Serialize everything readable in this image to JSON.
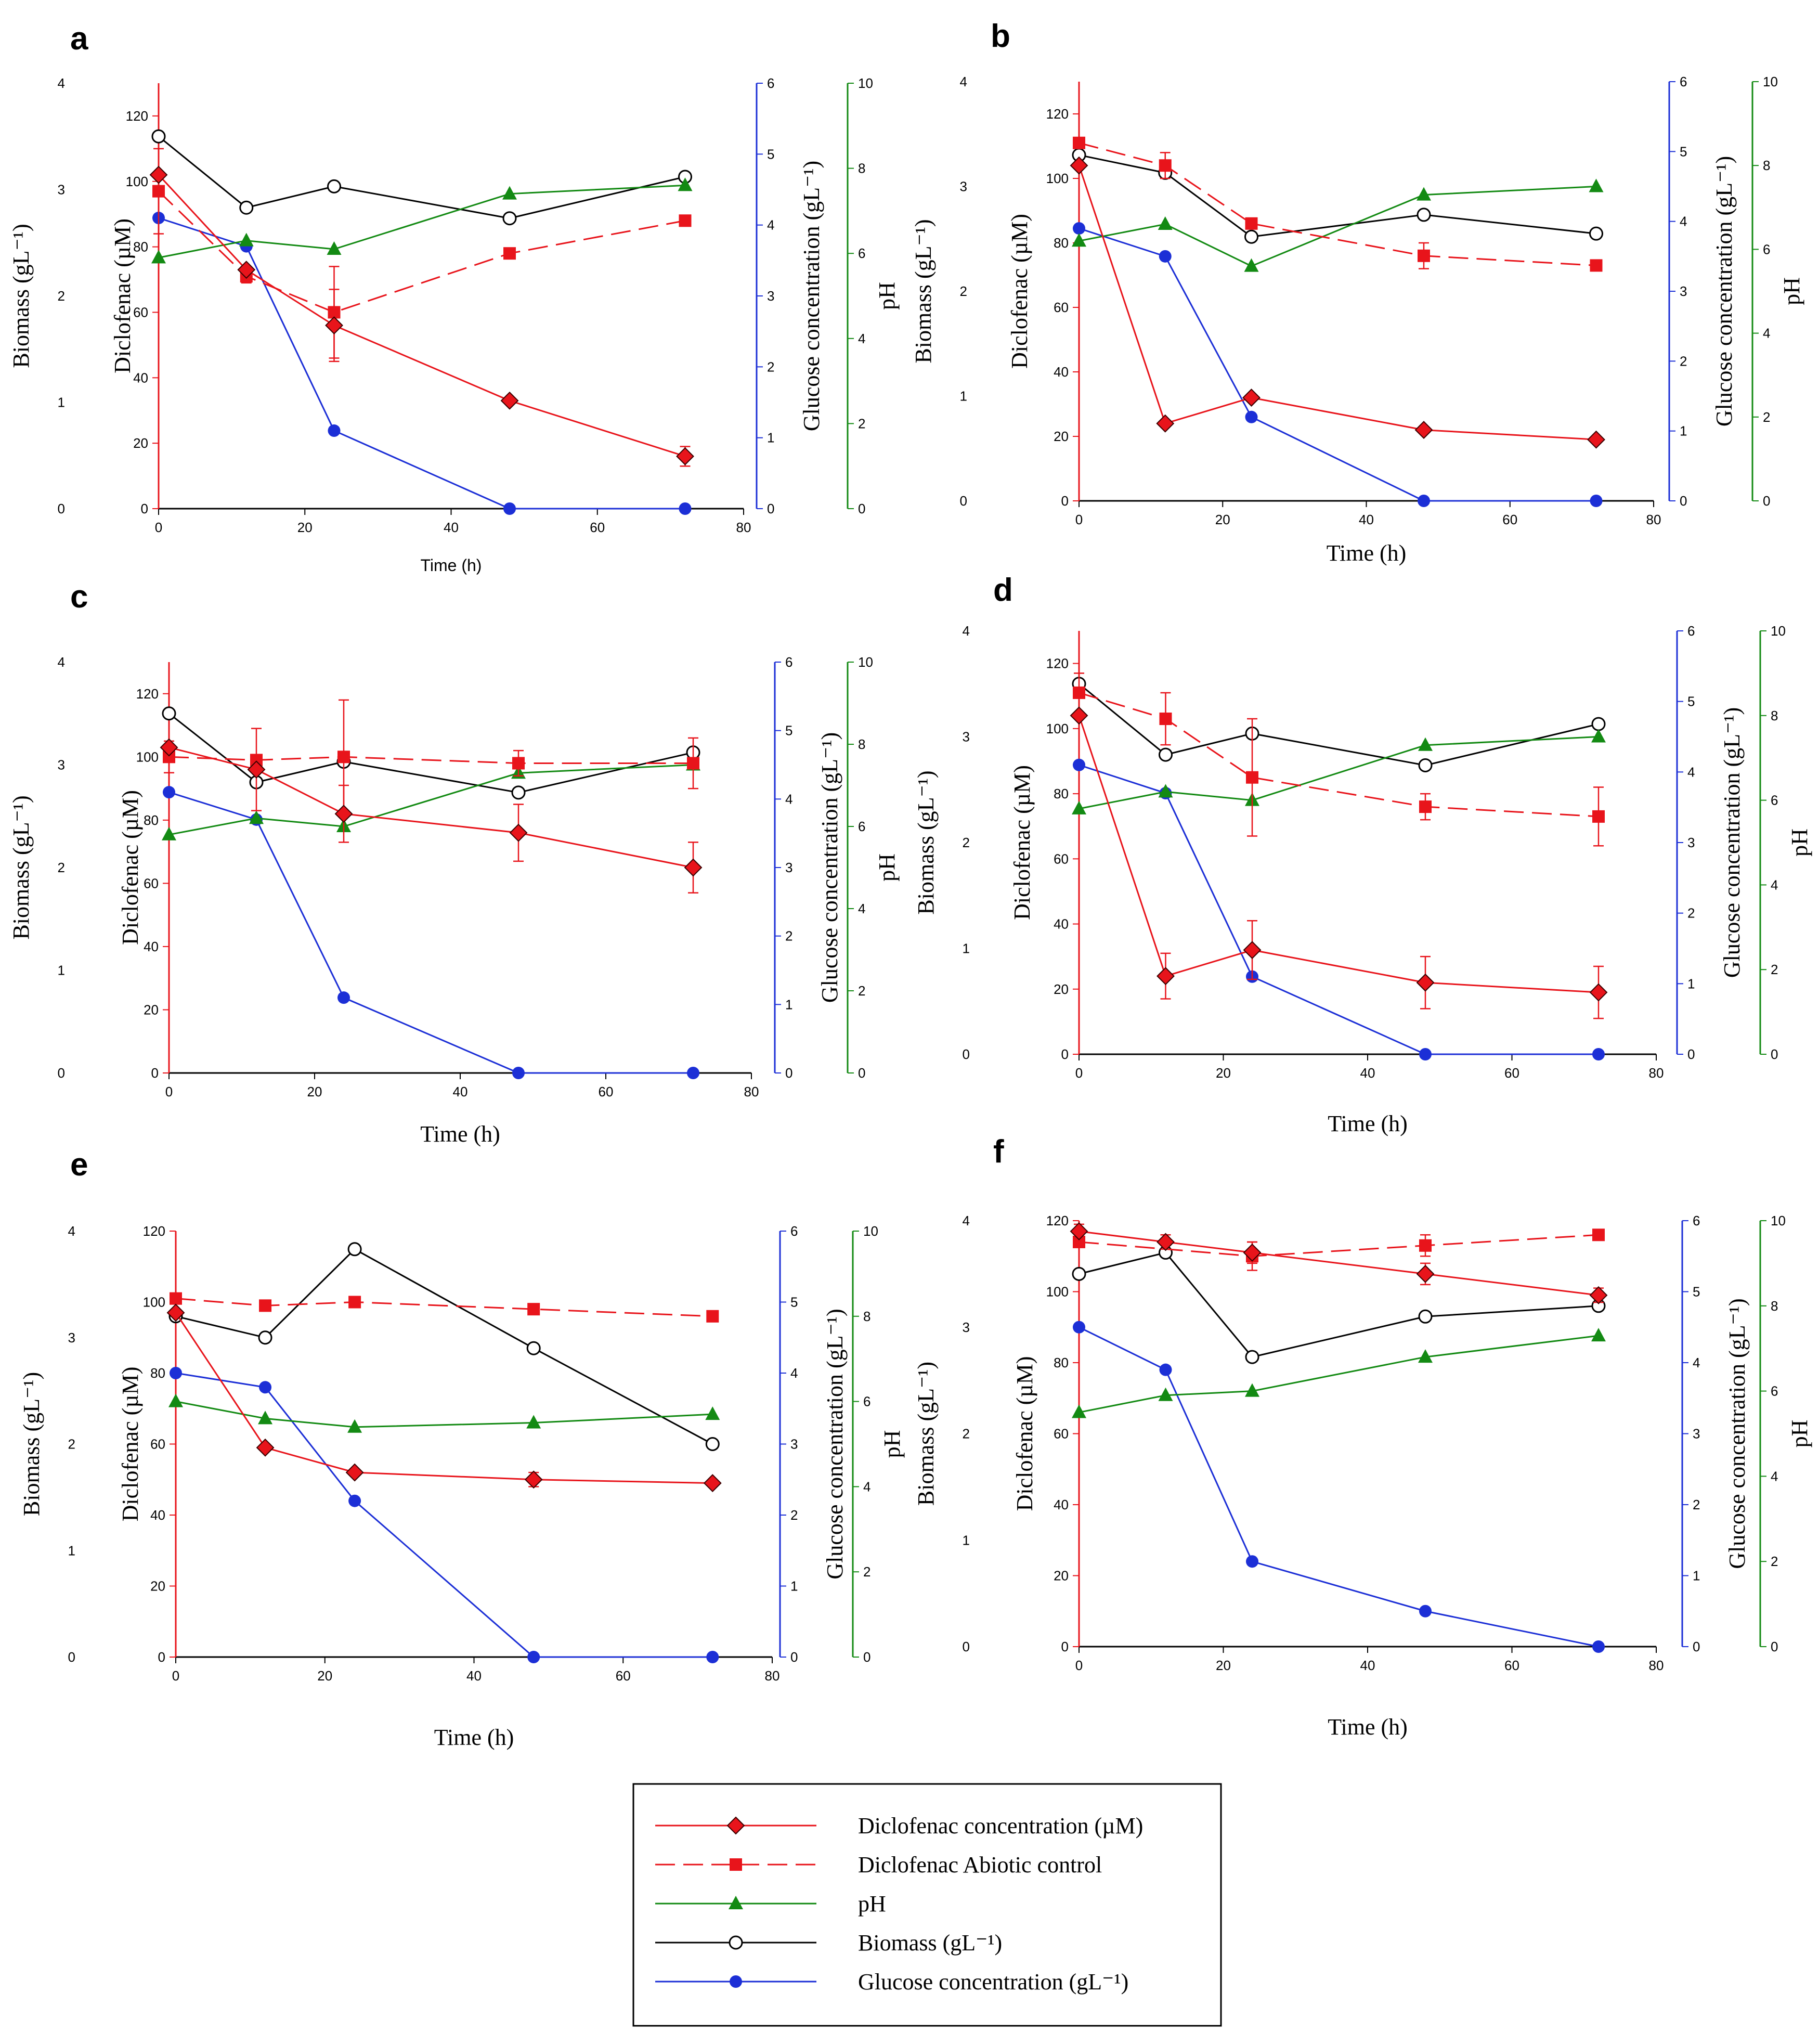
{
  "colors": {
    "diclofenac": "#e8141b",
    "abiotic": "#e8141b",
    "ph": "#138a13",
    "biomass": "#000000",
    "glucose": "#1c2fd6",
    "diamond_edge_dark": "#3a0000"
  },
  "axis_titles": {
    "biomass": "Biomass (gL⁻¹)",
    "diclofenac": "Diclofenac (µM)",
    "glucose": "Glucose concentration (gL⁻¹)",
    "ph": "pH",
    "time_sans": "Time (h)",
    "time_serif": "Time (h)"
  },
  "axes": {
    "time_ticks": [
      "0",
      "20",
      "40",
      "60",
      "80"
    ],
    "biomass_ticks": [
      "0",
      "1",
      "2",
      "3",
      "4"
    ],
    "diclofenac_ticks": [
      "0",
      "20",
      "40",
      "60",
      "80",
      "100",
      "120"
    ],
    "glucose_ticks": [
      "0",
      "1",
      "2",
      "3",
      "4",
      "5",
      "6"
    ],
    "ph_ticks": [
      "0",
      "2",
      "4",
      "6",
      "8",
      "10"
    ]
  },
  "legend": {
    "items": [
      {
        "series": "diclofenac",
        "label": "Diclofenac concentration (µM)"
      },
      {
        "series": "abiotic",
        "label": "Diclofenac Abiotic control"
      },
      {
        "series": "ph",
        "label": "pH"
      },
      {
        "series": "biomass",
        "label": "Biomass (gL⁻¹)"
      },
      {
        "series": "glucose",
        "label": "Glucose concentration (gL⁻¹)"
      }
    ]
  },
  "chart_data": [
    {
      "panel": "a",
      "type": "line",
      "x": [
        0,
        12,
        24,
        48,
        72
      ],
      "xlim": [
        0,
        80
      ],
      "ylim_diclofenac": [
        0,
        130
      ],
      "ylim_biomass": [
        0,
        4
      ],
      "ylim_glucose": [
        0,
        6
      ],
      "ylim_ph": [
        0,
        10
      ],
      "series": [
        {
          "name": "Diclofenac concentration (µM)",
          "key": "diclofenac",
          "axis": "diclofenac",
          "values": [
            102,
            73,
            56,
            33,
            16
          ],
          "err": [
            0,
            0,
            11,
            0,
            3
          ]
        },
        {
          "name": "Diclofenac Abiotic control",
          "key": "abiotic",
          "axis": "diclofenac",
          "values": [
            97,
            71,
            60,
            78,
            88
          ],
          "err": [
            13,
            2,
            14,
            0,
            0
          ]
        },
        {
          "name": "pH",
          "key": "ph",
          "axis": "ph",
          "values": [
            5.9,
            6.3,
            6.1,
            7.4,
            7.6
          ],
          "err": null
        },
        {
          "name": "Biomass (gL⁻¹)",
          "key": "biomass",
          "axis": "biomass",
          "values": [
            3.5,
            2.83,
            3.03,
            2.73,
            3.12
          ],
          "err": null
        },
        {
          "name": "Glucose concentration (gL⁻¹)",
          "key": "glucose",
          "axis": "glucose",
          "values": [
            4.1,
            3.7,
            1.1,
            0,
            0
          ],
          "err": null
        }
      ]
    },
    {
      "panel": "b",
      "type": "line",
      "x": [
        0,
        12,
        24,
        48,
        72
      ],
      "xlim": [
        0,
        80
      ],
      "ylim_diclofenac": [
        0,
        130
      ],
      "ylim_biomass": [
        0,
        4
      ],
      "ylim_glucose": [
        0,
        6
      ],
      "ylim_ph": [
        0,
        10
      ],
      "series": [
        {
          "name": "Diclofenac concentration (µM)",
          "key": "diclofenac",
          "axis": "diclofenac",
          "values": [
            104,
            24,
            32,
            22,
            19
          ],
          "err": null
        },
        {
          "name": "Diclofenac Abiotic control",
          "key": "abiotic",
          "axis": "diclofenac",
          "values": [
            111,
            104,
            86,
            76,
            73
          ],
          "err": [
            0,
            4,
            0,
            4,
            0
          ]
        },
        {
          "name": "pH",
          "key": "ph",
          "axis": "ph",
          "values": [
            6.2,
            6.6,
            5.6,
            7.3,
            7.5
          ],
          "err": null
        },
        {
          "name": "Biomass (gL⁻¹)",
          "key": "biomass",
          "axis": "biomass",
          "values": [
            3.3,
            3.13,
            2.52,
            2.73,
            2.55
          ],
          "err": null
        },
        {
          "name": "Glucose concentration (gL⁻¹)",
          "key": "glucose",
          "axis": "glucose",
          "values": [
            3.9,
            3.5,
            1.2,
            0,
            0
          ],
          "err": null
        }
      ]
    },
    {
      "panel": "c",
      "type": "line",
      "x": [
        0,
        12,
        24,
        48,
        72
      ],
      "xlim": [
        0,
        80
      ],
      "ylim_diclofenac": [
        0,
        130
      ],
      "ylim_biomass": [
        0,
        4
      ],
      "ylim_glucose": [
        0,
        6
      ],
      "ylim_ph": [
        0,
        10
      ],
      "series": [
        {
          "name": "Diclofenac concentration (µM)",
          "key": "diclofenac",
          "axis": "diclofenac",
          "values": [
            103,
            96,
            82,
            76,
            65
          ],
          "err": [
            0,
            13,
            9,
            9,
            8
          ]
        },
        {
          "name": "Diclofenac Abiotic control",
          "key": "abiotic",
          "axis": "diclofenac",
          "values": [
            100,
            99,
            100,
            98,
            98
          ],
          "err": [
            5,
            0,
            18,
            4,
            8
          ]
        },
        {
          "name": "pH",
          "key": "ph",
          "axis": "ph",
          "values": [
            5.8,
            6.2,
            6.0,
            7.3,
            7.5
          ],
          "err": null
        },
        {
          "name": "Biomass (gL⁻¹)",
          "key": "biomass",
          "axis": "biomass",
          "values": [
            3.5,
            2.83,
            3.03,
            2.73,
            3.12
          ],
          "err": null
        },
        {
          "name": "Glucose concentration (gL⁻¹)",
          "key": "glucose",
          "axis": "glucose",
          "values": [
            4.1,
            3.7,
            1.1,
            0,
            0
          ],
          "err": null
        }
      ]
    },
    {
      "panel": "d",
      "type": "line",
      "x": [
        0,
        12,
        24,
        48,
        72
      ],
      "xlim": [
        0,
        80
      ],
      "ylim_diclofenac": [
        0,
        130
      ],
      "ylim_biomass": [
        0,
        4
      ],
      "ylim_glucose": [
        0,
        6
      ],
      "ylim_ph": [
        0,
        10
      ],
      "series": [
        {
          "name": "Diclofenac concentration (µM)",
          "key": "diclofenac",
          "axis": "diclofenac",
          "values": [
            104,
            24,
            32,
            22,
            19
          ],
          "err": [
            0,
            7,
            9,
            8,
            8
          ]
        },
        {
          "name": "Diclofenac Abiotic control",
          "key": "abiotic",
          "axis": "diclofenac",
          "values": [
            111,
            103,
            85,
            76,
            73
          ],
          "err": [
            6,
            8,
            18,
            4,
            9
          ]
        },
        {
          "name": "pH",
          "key": "ph",
          "axis": "ph",
          "values": [
            5.8,
            6.2,
            6.0,
            7.3,
            7.5
          ],
          "err": null
        },
        {
          "name": "Biomass (gL⁻¹)",
          "key": "biomass",
          "axis": "biomass",
          "values": [
            3.5,
            2.83,
            3.03,
            2.73,
            3.12
          ],
          "err": null
        },
        {
          "name": "Glucose concentration (gL⁻¹)",
          "key": "glucose",
          "axis": "glucose",
          "values": [
            4.1,
            3.7,
            1.1,
            0,
            0
          ],
          "err": null
        }
      ]
    },
    {
      "panel": "e",
      "type": "line",
      "x": [
        0,
        12,
        24,
        48,
        72
      ],
      "xlim": [
        0,
        80
      ],
      "ylim_diclofenac": [
        0,
        120
      ],
      "ylim_biomass": [
        0,
        4
      ],
      "ylim_glucose": [
        0,
        6
      ],
      "ylim_ph": [
        0,
        10
      ],
      "series": [
        {
          "name": "Diclofenac concentration (µM)",
          "key": "diclofenac",
          "axis": "diclofenac",
          "values": [
            97,
            59,
            52,
            50,
            49
          ],
          "err": [
            0,
            0,
            0,
            2,
            0
          ]
        },
        {
          "name": "Diclofenac Abiotic control",
          "key": "abiotic",
          "axis": "diclofenac",
          "values": [
            101,
            99,
            100,
            98,
            96
          ],
          "err": null
        },
        {
          "name": "pH",
          "key": "ph",
          "axis": "ph",
          "values": [
            6.0,
            5.6,
            5.4,
            5.5,
            5.7
          ],
          "err": null
        },
        {
          "name": "Biomass (gL⁻¹)",
          "key": "biomass",
          "axis": "biomass",
          "values": [
            3.2,
            3.0,
            3.83,
            2.9,
            2.0
          ],
          "err": null
        },
        {
          "name": "Glucose concentration (gL⁻¹)",
          "key": "glucose",
          "axis": "glucose",
          "values": [
            4.0,
            3.8,
            2.2,
            0,
            0
          ],
          "err": null
        }
      ]
    },
    {
      "panel": "f",
      "type": "line",
      "x": [
        0,
        12,
        24,
        48,
        72
      ],
      "xlim": [
        0,
        80
      ],
      "ylim_diclofenac": [
        0,
        120
      ],
      "ylim_biomass": [
        0,
        4
      ],
      "ylim_glucose": [
        0,
        6
      ],
      "ylim_ph": [
        0,
        10
      ],
      "series": [
        {
          "name": "Diclofenac concentration (µM)",
          "key": "diclofenac",
          "axis": "diclofenac",
          "values": [
            117,
            114,
            111,
            105,
            99
          ],
          "err": [
            2,
            2,
            3,
            3,
            2
          ]
        },
        {
          "name": "Diclofenac Abiotic control",
          "key": "abiotic",
          "axis": "diclofenac",
          "values": [
            114,
            0,
            110,
            113,
            116
          ],
          "err": [
            0,
            0,
            4,
            3,
            0
          ],
          "present": [
            true,
            false,
            true,
            true,
            true
          ]
        },
        {
          "name": "pH",
          "key": "ph",
          "axis": "ph",
          "values": [
            5.5,
            5.9,
            6.0,
            6.8,
            7.3
          ],
          "err": null
        },
        {
          "name": "Biomass (gL⁻¹)",
          "key": "biomass",
          "axis": "biomass",
          "values": [
            3.5,
            3.7,
            2.72,
            3.1,
            3.2
          ],
          "err": null
        },
        {
          "name": "Glucose concentration (gL⁻¹)",
          "key": "glucose",
          "axis": "glucose",
          "values": [
            4.5,
            3.9,
            1.2,
            0.5,
            0
          ],
          "err": null
        }
      ]
    }
  ]
}
